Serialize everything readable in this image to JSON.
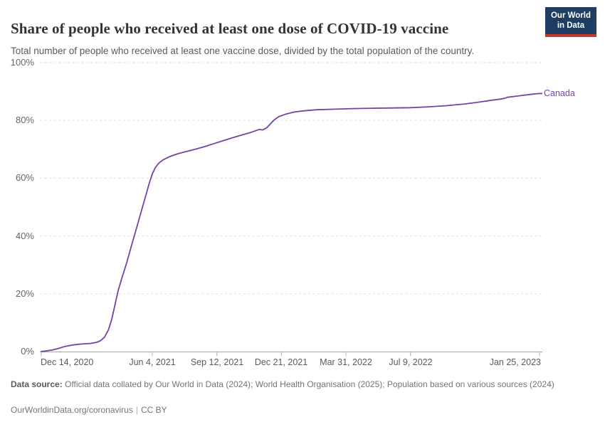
{
  "header": {
    "title": "Share of people who received at least one dose of COVID-19 vaccine",
    "subtitle": "Total number of people who received at least one vaccine dose, divided by the total population of the country.",
    "logo": {
      "line1": "Our World",
      "line2": "in Data",
      "bg_color": "#1d3d63",
      "bar_color": "#c0392b"
    }
  },
  "chart_data": {
    "type": "line",
    "title": "Share of people who received at least one dose of COVID-19 vaccine",
    "xlabel": "",
    "ylabel": "",
    "ylim": [
      0,
      100
    ],
    "x_range": [
      "2020-12-14",
      "2023-01-25"
    ],
    "grid": true,
    "legend_position": "end-of-line",
    "yticks": [
      {
        "value": 0,
        "label": "0%"
      },
      {
        "value": 20,
        "label": "20%"
      },
      {
        "value": 40,
        "label": "40%"
      },
      {
        "value": 60,
        "label": "60%"
      },
      {
        "value": 80,
        "label": "80%"
      },
      {
        "value": 100,
        "label": "100%"
      }
    ],
    "xticks": [
      {
        "date": "2020-12-14",
        "label": "Dec 14, 2020",
        "align": "left"
      },
      {
        "date": "2021-06-04",
        "label": "Jun 4, 2021",
        "align": "center"
      },
      {
        "date": "2021-09-12",
        "label": "Sep 12, 2021",
        "align": "center"
      },
      {
        "date": "2021-12-21",
        "label": "Dec 21, 2021",
        "align": "center"
      },
      {
        "date": "2022-03-31",
        "label": "Mar 31, 2022",
        "align": "center"
      },
      {
        "date": "2022-07-09",
        "label": "Jul 9, 2022",
        "align": "center"
      },
      {
        "date": "2023-01-25",
        "label": "Jan 25, 2023",
        "align": "right"
      }
    ],
    "series": [
      {
        "name": "Canada",
        "color": "#7544a3",
        "points": [
          [
            "2020-12-14",
            0.0
          ],
          [
            "2020-12-21",
            0.2
          ],
          [
            "2021-01-01",
            0.6
          ],
          [
            "2021-01-10",
            1.1
          ],
          [
            "2021-01-20",
            1.8
          ],
          [
            "2021-02-01",
            2.3
          ],
          [
            "2021-02-14",
            2.6
          ],
          [
            "2021-02-28",
            2.8
          ],
          [
            "2021-03-10",
            3.2
          ],
          [
            "2021-03-16",
            3.8
          ],
          [
            "2021-03-22",
            5.0
          ],
          [
            "2021-03-28",
            7.5
          ],
          [
            "2021-04-02",
            11.0
          ],
          [
            "2021-04-07",
            16.0
          ],
          [
            "2021-04-12",
            21.0
          ],
          [
            "2021-04-18",
            25.5
          ],
          [
            "2021-04-25",
            30.5
          ],
          [
            "2021-05-02",
            36.0
          ],
          [
            "2021-05-09",
            41.5
          ],
          [
            "2021-05-16",
            47.0
          ],
          [
            "2021-05-23",
            52.5
          ],
          [
            "2021-05-30",
            58.0
          ],
          [
            "2021-06-04",
            61.5
          ],
          [
            "2021-06-09",
            63.8
          ],
          [
            "2021-06-14",
            65.2
          ],
          [
            "2021-06-21",
            66.4
          ],
          [
            "2021-06-30",
            67.4
          ],
          [
            "2021-07-14",
            68.5
          ],
          [
            "2021-07-28",
            69.3
          ],
          [
            "2021-08-11",
            70.1
          ],
          [
            "2021-08-25",
            71.0
          ],
          [
            "2021-09-08",
            72.0
          ],
          [
            "2021-09-22",
            73.0
          ],
          [
            "2021-10-06",
            74.0
          ],
          [
            "2021-10-20",
            74.9
          ],
          [
            "2021-11-03",
            75.8
          ],
          [
            "2021-11-17",
            76.9
          ],
          [
            "2021-11-22",
            76.7
          ],
          [
            "2021-11-28",
            77.4
          ],
          [
            "2021-12-04",
            78.8
          ],
          [
            "2021-12-10",
            80.2
          ],
          [
            "2021-12-17",
            81.3
          ],
          [
            "2021-12-28",
            82.2
          ],
          [
            "2022-01-10",
            82.9
          ],
          [
            "2022-01-24",
            83.3
          ],
          [
            "2022-02-14",
            83.7
          ],
          [
            "2022-03-14",
            83.9
          ],
          [
            "2022-04-11",
            84.1
          ],
          [
            "2022-05-09",
            84.2
          ],
          [
            "2022-06-13",
            84.3
          ],
          [
            "2022-07-09",
            84.4
          ],
          [
            "2022-08-06",
            84.7
          ],
          [
            "2022-09-03",
            85.1
          ],
          [
            "2022-10-01",
            85.7
          ],
          [
            "2022-10-22",
            86.3
          ],
          [
            "2022-11-12",
            87.0
          ],
          [
            "2022-11-26",
            87.4
          ],
          [
            "2022-12-03",
            87.7
          ],
          [
            "2022-12-06",
            88.0
          ],
          [
            "2022-12-17",
            88.3
          ],
          [
            "2022-12-31",
            88.7
          ],
          [
            "2023-01-14",
            89.1
          ],
          [
            "2023-01-25",
            89.3
          ]
        ]
      }
    ]
  },
  "footer": {
    "source_label": "Data source:",
    "source_text": " Official data collated by Our World in Data (2024); World Health Organisation (2025); Population based on various sources (2024)",
    "link": "OurWorldinData.org/coronavirus",
    "separator": "|",
    "license": "CC BY"
  }
}
